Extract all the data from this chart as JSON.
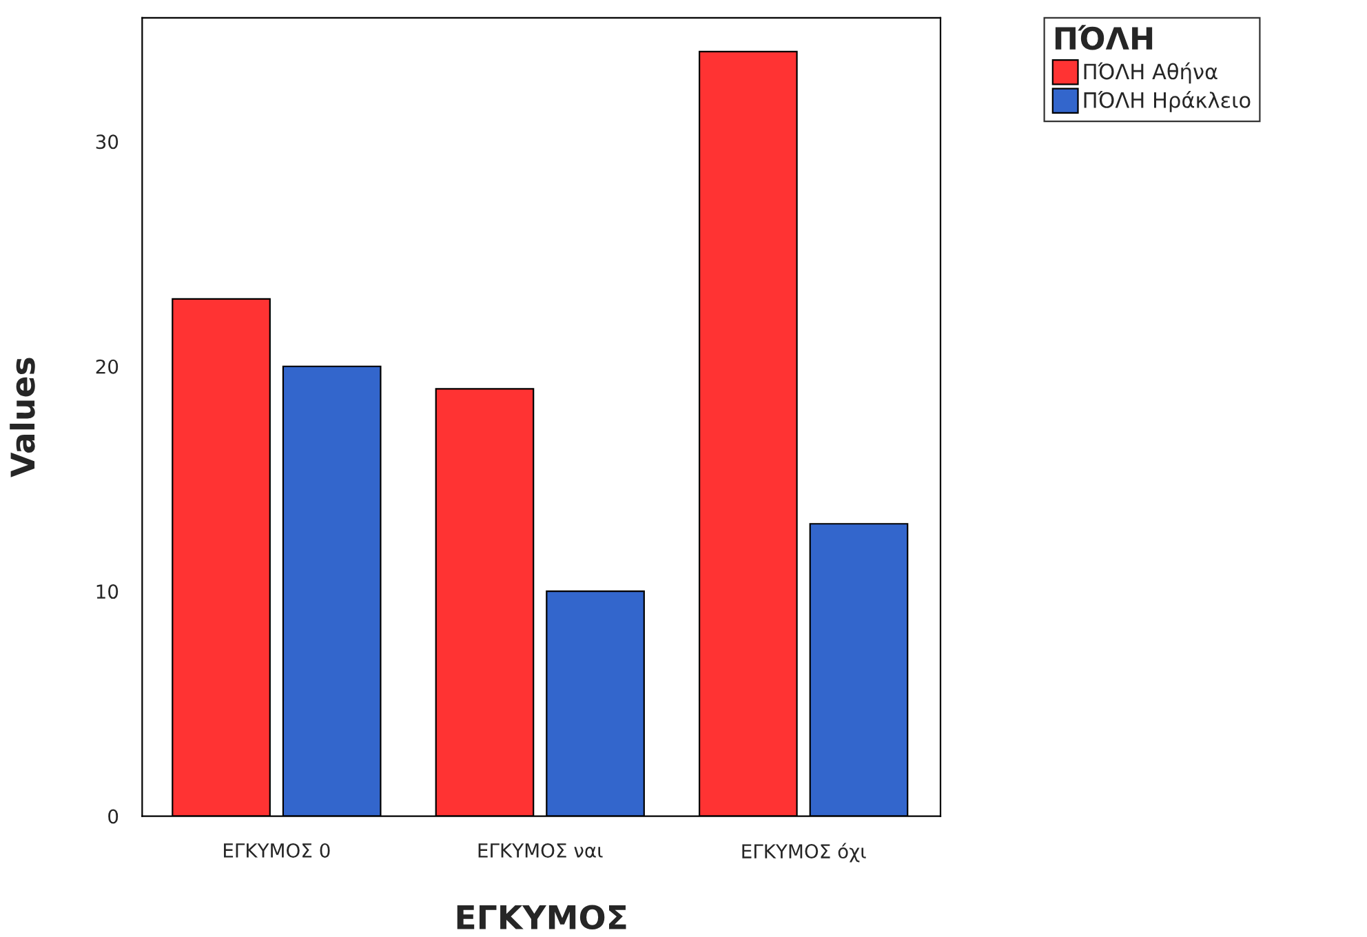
{
  "chart_data": {
    "type": "bar",
    "xlabel": "ΕΓΚΥΜΟΣ",
    "ylabel": "Values",
    "legend_title": "ΠΌΛΗ",
    "categories": [
      "ΕΓΚΥΜΟΣ 0",
      "ΕΓΚΥΜΟΣ ναι",
      "ΕΓΚΥΜΟΣ όχι"
    ],
    "series": [
      {
        "name": "ΠΌΛΗ Αθήνα",
        "color": "#ff3333",
        "values": [
          23,
          19,
          34
        ]
      },
      {
        "name": "ΠΌΛΗ Ηράκλειο",
        "color": "#3366cc",
        "values": [
          20,
          10,
          13
        ]
      }
    ],
    "ylim": [
      0,
      35.5
    ],
    "yticks": [
      0,
      10,
      20,
      30
    ],
    "grid": false,
    "legend": "top right"
  }
}
